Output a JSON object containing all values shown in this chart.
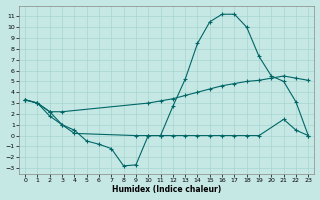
{
  "xlabel": "Humidex (Indice chaleur)",
  "xlim": [
    -0.5,
    23.5
  ],
  "ylim": [
    -3.5,
    12
  ],
  "yticks": [
    -3,
    -2,
    -1,
    0,
    1,
    2,
    3,
    4,
    5,
    6,
    7,
    8,
    9,
    10,
    11
  ],
  "xticks": [
    0,
    1,
    2,
    3,
    4,
    5,
    6,
    7,
    8,
    9,
    10,
    11,
    12,
    13,
    14,
    15,
    16,
    17,
    18,
    19,
    20,
    21,
    22,
    23
  ],
  "background_color": "#c5e8e5",
  "grid_color": "#a8d5d0",
  "line_color": "#006666",
  "line1_x": [
    0,
    1,
    2,
    3,
    10,
    11,
    12,
    13,
    14,
    15,
    16,
    17,
    18,
    19,
    20,
    21,
    22,
    23
  ],
  "line1_y": [
    3.3,
    3.0,
    2.2,
    2.2,
    3.0,
    3.2,
    3.4,
    3.7,
    4.0,
    4.3,
    4.6,
    4.8,
    5.0,
    5.1,
    5.3,
    5.5,
    5.3,
    5.1
  ],
  "line2_x": [
    0,
    1,
    2,
    3,
    4,
    9,
    10,
    11,
    12,
    13,
    14,
    15,
    16,
    17,
    18,
    19,
    21,
    22,
    23
  ],
  "line2_y": [
    3.3,
    3.0,
    2.2,
    1.0,
    0.2,
    0.0,
    0.0,
    0.0,
    0.0,
    0.0,
    0.0,
    0.0,
    0.0,
    0.0,
    0.0,
    0.0,
    1.5,
    0.5,
    0.0
  ],
  "line3_x": [
    0,
    1,
    2,
    3,
    4,
    5,
    6,
    7,
    8,
    9,
    10,
    11,
    12,
    13,
    14,
    15,
    16,
    17,
    18,
    19,
    20,
    21,
    22,
    23
  ],
  "line3_y": [
    3.3,
    3.0,
    1.8,
    1.0,
    0.5,
    -0.5,
    -0.8,
    -1.2,
    -2.8,
    -2.7,
    0.0,
    0.0,
    2.7,
    5.2,
    8.5,
    10.5,
    11.2,
    11.2,
    10.0,
    7.3,
    5.5,
    5.0,
    3.1,
    0.0
  ]
}
